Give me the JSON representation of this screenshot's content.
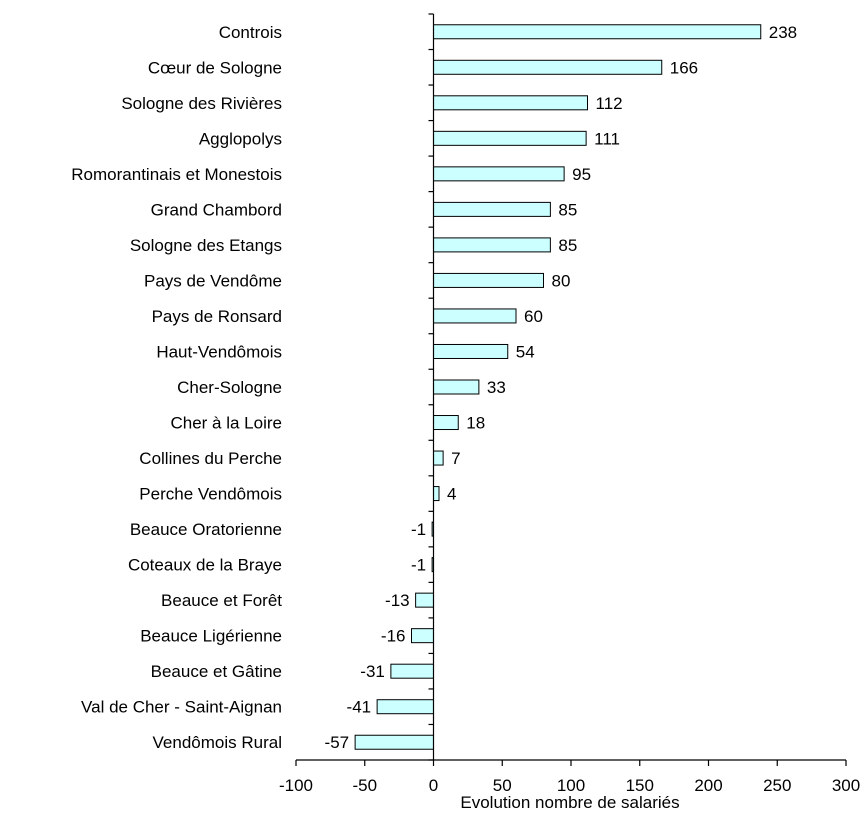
{
  "chart_data": {
    "type": "bar",
    "orientation": "horizontal",
    "xlabel": "Evolution nombre de salariés",
    "ylabel": "",
    "title": "",
    "xlim": [
      -100,
      300
    ],
    "xticks": [
      -100,
      -50,
      0,
      50,
      100,
      150,
      200,
      250,
      300
    ],
    "bar_color": "#ccffff",
    "data_labels": true,
    "grid": false,
    "categories": [
      "Controis",
      "Cœur de Sologne",
      "Sologne des Rivières",
      "Agglopolys",
      "Romorantinais et  Monestois",
      "Grand Chambord",
      "Sologne des Etangs",
      "Pays de Vendôme",
      "Pays de Ronsard",
      "Haut-Vendômois",
      "Cher-Sologne",
      "Cher à la Loire",
      "Collines du Perche",
      "Perche Vendômois",
      "Beauce Oratorienne",
      "Coteaux de la Braye",
      "Beauce et Forêt",
      "Beauce Ligérienne",
      "Beauce et Gâtine",
      "Val de Cher - Saint-Aignan",
      "Vendômois Rural"
    ],
    "values": [
      238,
      166,
      112,
      111,
      95,
      85,
      85,
      80,
      60,
      54,
      33,
      18,
      7,
      4,
      -1,
      -1,
      -13,
      -16,
      -31,
      -41,
      -57
    ]
  }
}
